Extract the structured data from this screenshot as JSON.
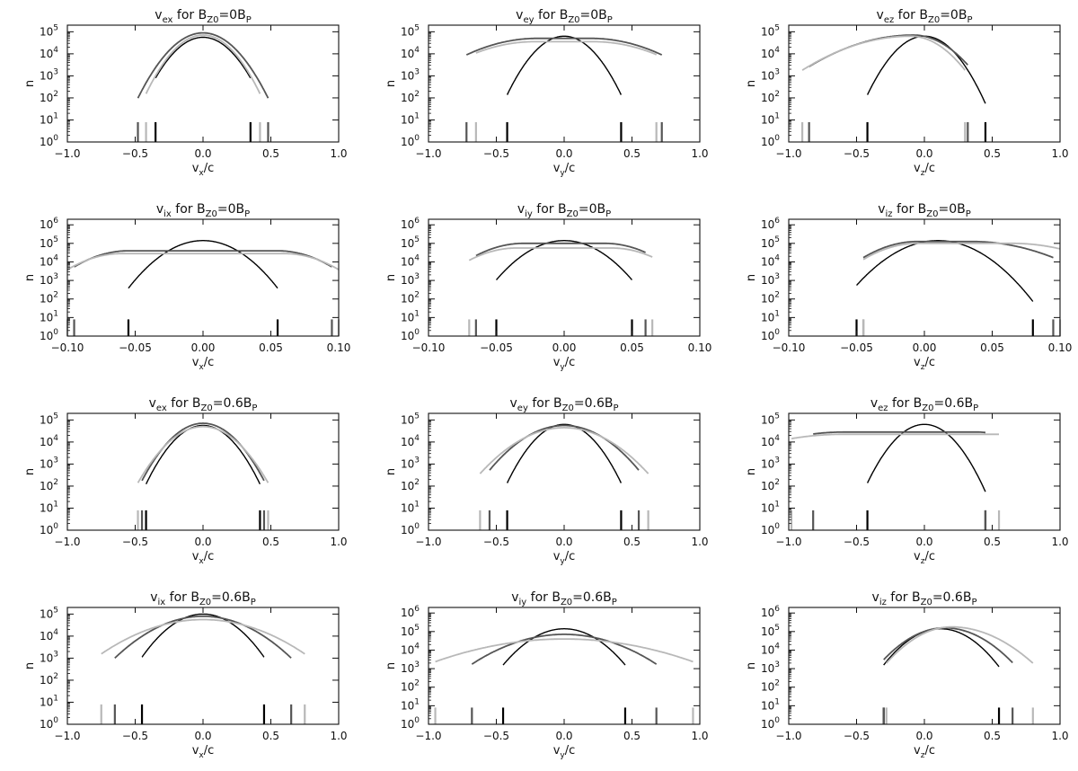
{
  "figure": {
    "y_axis_label": "n",
    "tick_labels": {
      "y": [
        "10",
        "10",
        "10",
        "10",
        "10",
        "10"
      ],
      "y_exponents": [
        "0",
        "1",
        "2",
        "3",
        "4",
        "5"
      ],
      "y_exponents_ion": [
        "0",
        "1",
        "2",
        "3",
        "4",
        "5",
        "6"
      ]
    }
  },
  "chart_data": [
    {
      "type": "line",
      "title": {
        "main": "v",
        "sub": "ex",
        "mid": " for B",
        "sub2": "Z0",
        "eq": "=0B",
        "sub3": "P"
      },
      "xlabel": {
        "main": "v",
        "sub": "x",
        "tail": "/c"
      },
      "xlim": [
        -1.0,
        1.0
      ],
      "xticks": [
        "-1.0",
        "-0.5",
        "0.0",
        "0.5",
        "1.0"
      ],
      "ylim_exp": [
        0,
        5.3
      ],
      "yexps": [
        0,
        1,
        2,
        3,
        4,
        5
      ],
      "log_y": true,
      "series": [
        {
          "color": "#000000",
          "mu": 0.0,
          "sl": 0.12,
          "sr": 0.12,
          "peak": 4.75,
          "cut": [
            -0.35,
            0.35
          ]
        },
        {
          "color": "#555555",
          "mu": 0.0,
          "sl": 0.13,
          "sr": 0.13,
          "peak": 4.95,
          "cut": [
            -0.48,
            0.48
          ]
        },
        {
          "color": "#b8b8b8",
          "mu": 0.0,
          "sl": 0.12,
          "sr": 0.12,
          "peak": 4.85,
          "cut": [
            -0.42,
            0.42
          ]
        }
      ]
    },
    {
      "type": "line",
      "title": {
        "main": "v",
        "sub": "ey",
        "mid": " for B",
        "sub2": "Z0",
        "eq": "=0B",
        "sub3": "P"
      },
      "xlabel": {
        "main": "v",
        "sub": "y",
        "tail": "/c"
      },
      "xlim": [
        -1.0,
        1.0
      ],
      "xticks": [
        "-1.0",
        "-0.5",
        "0.0",
        "0.5",
        "1.0"
      ],
      "ylim_exp": [
        0,
        5.3
      ],
      "yexps": [
        0,
        1,
        2,
        3,
        4,
        5
      ],
      "log_y": true,
      "series": [
        {
          "color": "#000000",
          "mu": 0.0,
          "sl": 0.12,
          "sr": 0.12,
          "peak": 4.8,
          "cut": [
            -0.42,
            0.42
          ]
        },
        {
          "color": "#555555",
          "mu": 0.0,
          "sl": 0.28,
          "sr": 0.28,
          "peak": 4.7,
          "cut": [
            -0.72,
            0.72
          ],
          "flat": 0.2
        },
        {
          "color": "#b8b8b8",
          "mu": 0.0,
          "sl": 0.28,
          "sr": 0.28,
          "peak": 4.55,
          "cut": [
            -0.65,
            0.68
          ],
          "flat": 0.22
        }
      ]
    },
    {
      "type": "line",
      "title": {
        "main": "v",
        "sub": "ez",
        "mid": " for B",
        "sub2": "Z0",
        "eq": "=0B",
        "sub3": "P"
      },
      "xlabel": {
        "main": "v",
        "sub": "z",
        "tail": "/c"
      },
      "xlim": [
        -1.0,
        1.0
      ],
      "xticks": [
        "-1.0",
        "-0.5",
        "0.0",
        "0.5",
        "1.0"
      ],
      "ylim_exp": [
        0,
        5.3
      ],
      "yexps": [
        0,
        1,
        2,
        3,
        4,
        5
      ],
      "log_y": true,
      "series": [
        {
          "color": "#000000",
          "mu": 0.0,
          "sl": 0.12,
          "sr": 0.12,
          "peak": 4.8,
          "cut": [
            -0.42,
            0.45
          ]
        },
        {
          "color": "#555555",
          "mu": -0.08,
          "sl": 0.3,
          "sr": 0.16,
          "peak": 4.85,
          "cut": [
            -0.85,
            0.32
          ]
        },
        {
          "color": "#b8b8b8",
          "mu": -0.1,
          "sl": 0.3,
          "sr": 0.15,
          "peak": 4.8,
          "cut": [
            -0.9,
            0.3
          ]
        }
      ]
    },
    {
      "type": "line",
      "title": {
        "main": "v",
        "sub": "ix",
        "mid": " for B",
        "sub2": "Z0",
        "eq": "=0B",
        "sub3": "P"
      },
      "xlabel": {
        "main": "v",
        "sub": "x",
        "tail": "/c"
      },
      "xlim": [
        -0.1,
        0.1
      ],
      "xticks": [
        "-0.10",
        "-0.05",
        "0.00",
        "0.05",
        "0.10"
      ],
      "ylim_exp": [
        0,
        6.3
      ],
      "yexps": [
        0,
        1,
        2,
        3,
        4,
        5,
        6
      ],
      "log_y": true,
      "series": [
        {
          "color": "#000000",
          "mu": 0.0,
          "sl": 0.016,
          "sr": 0.016,
          "peak": 5.15,
          "cut": [
            -0.055,
            0.055
          ]
        },
        {
          "color": "#555555",
          "mu": 0.0,
          "sl": 0.02,
          "sr": 0.02,
          "peak": 4.6,
          "cut": [
            -0.095,
            0.095
          ],
          "flat": 0.055
        },
        {
          "color": "#b8b8b8",
          "mu": 0.0,
          "sl": 0.02,
          "sr": 0.02,
          "peak": 4.45,
          "cut": [
            -0.1,
            0.1
          ],
          "flat": 0.06
        }
      ]
    },
    {
      "type": "line",
      "title": {
        "main": "v",
        "sub": "iy",
        "mid": " for B",
        "sub2": "Z0",
        "eq": "=0B",
        "sub3": "P"
      },
      "xlabel": {
        "main": "v",
        "sub": "y",
        "tail": "/c"
      },
      "xlim": [
        -0.1,
        0.1
      ],
      "xticks": [
        "-0.10",
        "-0.05",
        "0.00",
        "0.05",
        "0.10"
      ],
      "ylim_exp": [
        0,
        6.3
      ],
      "yexps": [
        0,
        1,
        2,
        3,
        4,
        5,
        6
      ],
      "log_y": true,
      "series": [
        {
          "color": "#000000",
          "mu": 0.0,
          "sl": 0.016,
          "sr": 0.016,
          "peak": 5.15,
          "cut": [
            -0.05,
            0.05
          ]
        },
        {
          "color": "#555555",
          "mu": 0.0,
          "sl": 0.02,
          "sr": 0.02,
          "peak": 5.0,
          "cut": [
            -0.065,
            0.06
          ],
          "flat": 0.03
        },
        {
          "color": "#b8b8b8",
          "mu": 0.0,
          "sl": 0.02,
          "sr": 0.02,
          "peak": 4.75,
          "cut": [
            -0.07,
            0.065
          ],
          "flat": 0.035
        }
      ]
    },
    {
      "type": "line",
      "title": {
        "main": "v",
        "sub": "iz",
        "mid": " for B",
        "sub2": "Z0",
        "eq": "=0B",
        "sub3": "P"
      },
      "xlabel": {
        "main": "v",
        "sub": "z",
        "tail": "/c"
      },
      "xlim": [
        -0.1,
        0.1
      ],
      "xticks": [
        "-0.10",
        "-0.05",
        "0.00",
        "0.05",
        "0.10"
      ],
      "ylim_exp": [
        0,
        6.3
      ],
      "yexps": [
        0,
        1,
        2,
        3,
        4,
        5,
        6
      ],
      "log_y": true,
      "series": [
        {
          "color": "#000000",
          "mu": 0.01,
          "sl": 0.018,
          "sr": 0.018,
          "peak": 5.15,
          "cut": [
            -0.05,
            0.08
          ]
        },
        {
          "color": "#555555",
          "mu": 0.015,
          "sl": 0.02,
          "sr": 0.03,
          "peak": 5.1,
          "cut": [
            -0.045,
            0.095
          ],
          "flat": 0.02
        },
        {
          "color": "#b8b8b8",
          "mu": 0.03,
          "sl": 0.02,
          "sr": 0.03,
          "peak": 5.0,
          "cut": [
            -0.045,
            0.1
          ],
          "flat": 0.035
        }
      ]
    },
    {
      "type": "line",
      "title": {
        "main": "v",
        "sub": "ex",
        "mid": " for B",
        "sub2": "Z0",
        "eq": "=0.6B",
        "sub3": "P"
      },
      "xlabel": {
        "main": "v",
        "sub": "x",
        "tail": "/c"
      },
      "xlim": [
        -1.0,
        1.0
      ],
      "xticks": [
        "-1.0",
        "-0.5",
        "0.0",
        "0.5",
        "1.0"
      ],
      "ylim_exp": [
        0,
        5.3
      ],
      "yexps": [
        0,
        1,
        2,
        3,
        4,
        5
      ],
      "log_y": true,
      "series": [
        {
          "color": "#000000",
          "mu": 0.0,
          "sl": 0.12,
          "sr": 0.12,
          "peak": 4.75,
          "cut": [
            -0.42,
            0.42
          ]
        },
        {
          "color": "#555555",
          "mu": 0.0,
          "sl": 0.13,
          "sr": 0.13,
          "peak": 4.85,
          "cut": [
            -0.45,
            0.45
          ]
        },
        {
          "color": "#b8b8b8",
          "mu": 0.0,
          "sl": 0.14,
          "sr": 0.14,
          "peak": 4.7,
          "cut": [
            -0.48,
            0.48
          ]
        }
      ]
    },
    {
      "type": "line",
      "title": {
        "main": "v",
        "sub": "ey",
        "mid": " for B",
        "sub2": "Z0",
        "eq": "=0.6B",
        "sub3": "P"
      },
      "xlabel": {
        "main": "v",
        "sub": "y",
        "tail": "/c"
      },
      "xlim": [
        -1.0,
        1.0
      ],
      "xticks": [
        "-1.0",
        "-0.5",
        "0.0",
        "0.5",
        "1.0"
      ],
      "ylim_exp": [
        0,
        5.3
      ],
      "yexps": [
        0,
        1,
        2,
        3,
        4,
        5
      ],
      "log_y": true,
      "series": [
        {
          "color": "#000000",
          "mu": 0.0,
          "sl": 0.12,
          "sr": 0.12,
          "peak": 4.8,
          "cut": [
            -0.42,
            0.42
          ]
        },
        {
          "color": "#555555",
          "mu": 0.0,
          "sl": 0.18,
          "sr": 0.18,
          "peak": 4.75,
          "cut": [
            -0.55,
            0.55
          ]
        },
        {
          "color": "#b8b8b8",
          "mu": 0.0,
          "sl": 0.2,
          "sr": 0.2,
          "peak": 4.65,
          "cut": [
            -0.62,
            0.62
          ]
        }
      ]
    },
    {
      "type": "line",
      "title": {
        "main": "v",
        "sub": "ez",
        "mid": " for B",
        "sub2": "Z0",
        "eq": "=0.6B",
        "sub3": "P"
      },
      "xlabel": {
        "main": "v",
        "sub": "z",
        "tail": "/c"
      },
      "xlim": [
        -1.0,
        1.0
      ],
      "xticks": [
        "-1.0",
        "-0.5",
        "0.0",
        "0.5",
        "1.0"
      ],
      "ylim_exp": [
        0,
        5.3
      ],
      "yexps": [
        0,
        1,
        2,
        3,
        4,
        5
      ],
      "log_y": true,
      "series": [
        {
          "color": "#000000",
          "mu": 0.0,
          "sl": 0.12,
          "sr": 0.12,
          "peak": 4.8,
          "cut": [
            -0.42,
            0.45
          ]
        },
        {
          "color": "#555555",
          "mu": -0.1,
          "sl": 0.35,
          "sr": 0.15,
          "peak": 4.45,
          "cut": [
            -0.82,
            0.45
          ],
          "flat": 0.5
        },
        {
          "color": "#b8b8b8",
          "mu": 0.0,
          "sl": 0.4,
          "sr": 0.16,
          "peak": 4.35,
          "cut": [
            -0.98,
            0.55
          ],
          "flat": 0.6
        }
      ]
    },
    {
      "type": "line",
      "title": {
        "main": "v",
        "sub": "ix",
        "mid": " for B",
        "sub2": "Z0",
        "eq": "=0.6B",
        "sub3": "P"
      },
      "xlabel": {
        "main": "v",
        "sub": "x",
        "tail": "/c"
      },
      "xlim": [
        -1.0,
        1.0
      ],
      "xticks": [
        "-1.0",
        "-0.5",
        "0.0",
        "0.5",
        "1.0"
      ],
      "ylim_exp": [
        0,
        5.3
      ],
      "yexps": [
        0,
        1,
        2,
        3,
        4,
        5
      ],
      "log_y": true,
      "series": [
        {
          "color": "#000000",
          "mu": 0.0,
          "sl": 0.15,
          "sr": 0.15,
          "peak": 5.0,
          "cut": [
            -0.45,
            0.45
          ]
        },
        {
          "color": "#555555",
          "mu": 0.0,
          "sl": 0.22,
          "sr": 0.22,
          "peak": 4.9,
          "cut": [
            -0.65,
            0.65
          ]
        },
        {
          "color": "#b8b8b8",
          "mu": 0.0,
          "sl": 0.28,
          "sr": 0.28,
          "peak": 4.75,
          "cut": [
            -0.75,
            0.75
          ]
        }
      ]
    },
    {
      "type": "line",
      "title": {
        "main": "v",
        "sub": "iy",
        "mid": " for B",
        "sub2": "Z0",
        "eq": "=0.6B",
        "sub3": "P"
      },
      "xlabel": {
        "main": "v",
        "sub": "y",
        "tail": "/c"
      },
      "xlim": [
        -1.0,
        1.0
      ],
      "xticks": [
        "-1.0",
        "-0.5",
        "0.0",
        "0.5",
        "1.0"
      ],
      "ylim_exp": [
        0,
        6.3
      ],
      "yexps": [
        0,
        1,
        2,
        3,
        4,
        5,
        6
      ],
      "log_y": true,
      "series": [
        {
          "color": "#000000",
          "mu": 0.0,
          "sl": 0.15,
          "sr": 0.15,
          "peak": 5.15,
          "cut": [
            -0.45,
            0.45
          ]
        },
        {
          "color": "#555555",
          "mu": 0.0,
          "sl": 0.25,
          "sr": 0.25,
          "peak": 4.85,
          "cut": [
            -0.68,
            0.68
          ]
        },
        {
          "color": "#b8b8b8",
          "mu": 0.0,
          "sl": 0.4,
          "sr": 0.4,
          "peak": 4.6,
          "cut": [
            -0.95,
            0.95
          ]
        }
      ]
    },
    {
      "type": "line",
      "title": {
        "main": "v",
        "sub": "iz",
        "mid": " for B",
        "sub2": "Z0",
        "eq": "=0.6B",
        "sub3": "P"
      },
      "xlabel": {
        "main": "v",
        "sub": "z",
        "tail": "/c"
      },
      "xlim": [
        -1.0,
        1.0
      ],
      "xticks": [
        "-1.0",
        "-0.5",
        "0.0",
        "0.5",
        "1.0"
      ],
      "ylim_exp": [
        0,
        6.3
      ],
      "yexps": [
        0,
        1,
        2,
        3,
        4,
        5,
        6
      ],
      "log_y": true,
      "series": [
        {
          "color": "#000000",
          "mu": 0.12,
          "sl": 0.14,
          "sr": 0.14,
          "peak": 5.15,
          "cut": [
            -0.3,
            0.55
          ]
        },
        {
          "color": "#555555",
          "mu": 0.15,
          "sl": 0.16,
          "sr": 0.17,
          "peak": 5.2,
          "cut": [
            -0.3,
            0.65
          ]
        },
        {
          "color": "#b8b8b8",
          "mu": 0.2,
          "sl": 0.16,
          "sr": 0.2,
          "peak": 5.25,
          "cut": [
            -0.28,
            0.8
          ]
        }
      ]
    }
  ]
}
